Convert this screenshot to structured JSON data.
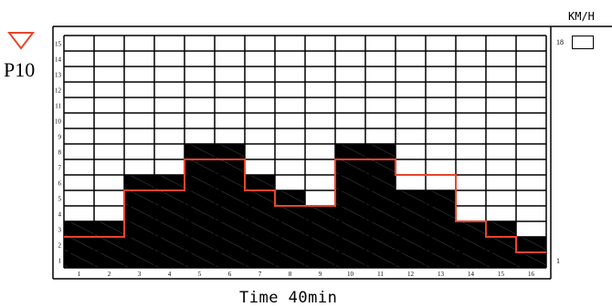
{
  "program": {
    "label": "P10",
    "indicator_icon": "down-triangle-icon",
    "indicator_color": "#e8452a"
  },
  "profile": {
    "segments": [
      "1",
      "2",
      "3",
      "4",
      "5",
      "6",
      "7",
      "8",
      "9",
      "10",
      "11",
      "12",
      "13",
      "14",
      "15",
      "16"
    ],
    "level_ticks": [
      "1",
      "2",
      "3",
      "4",
      "5",
      "6",
      "7",
      "8",
      "9",
      "10",
      "11",
      "12",
      "13",
      "14",
      "15"
    ],
    "bar_heights": [
      3,
      3,
      6,
      6,
      8,
      8,
      6,
      5,
      4,
      8,
      8,
      5,
      5,
      3,
      3,
      2
    ],
    "target_levels": [
      2,
      2,
      5,
      5,
      7,
      7,
      5,
      4,
      4,
      7,
      7,
      6,
      6,
      3,
      2,
      1
    ],
    "bar_color": "#000000",
    "target_line_color": "#e8452a"
  },
  "time": {
    "label": "Time 40min"
  },
  "speed": {
    "unit": "KM/H",
    "scale_max": "18",
    "scale_min": "1",
    "value": ""
  }
}
